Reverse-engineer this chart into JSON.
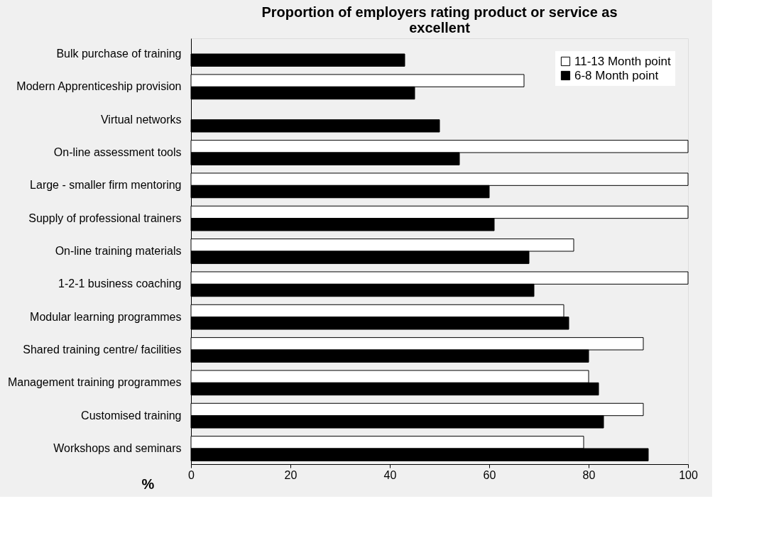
{
  "chart_data": {
    "type": "bar",
    "orientation": "horizontal",
    "title": "Proportion of employers rating product or service as excellent",
    "xlabel": "%",
    "categories": [
      "Bulk purchase of training",
      "Modern Apprenticeship provision",
      "Virtual networks",
      "On-line assessment tools",
      "Large - smaller firm mentoring",
      "Supply of professional trainers",
      "On-line training materials",
      "1-2-1 business coaching",
      "Modular learning programmes",
      "Shared training centre/ facilities",
      "Management training programmes",
      "Customised training",
      "Workshops and seminars"
    ],
    "series": [
      {
        "name": "11-13 Month point",
        "color": "#ffffff",
        "values": [
          null,
          67,
          null,
          100,
          100,
          100,
          77,
          100,
          75,
          91,
          80,
          91,
          79
        ]
      },
      {
        "name": "6-8 Month point",
        "color": "#000000",
        "values": [
          43,
          45,
          50,
          54,
          60,
          61,
          68,
          69,
          76,
          80,
          82,
          83,
          92
        ]
      }
    ],
    "xlim": [
      0,
      100
    ],
    "xticks": [
      0,
      20,
      40,
      60,
      80,
      100
    ],
    "grid": false,
    "legend": "top right"
  }
}
